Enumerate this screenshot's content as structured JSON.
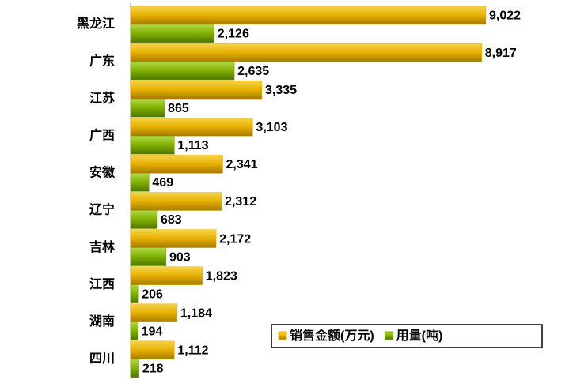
{
  "chart_data": {
    "type": "bar",
    "orientation": "horizontal",
    "categories": [
      "黑龙江",
      "广东",
      "江苏",
      "广西",
      "安徽",
      "辽宁",
      "吉林",
      "江西",
      "湖南",
      "四川"
    ],
    "series": [
      {
        "name": "销售金额(万元)",
        "color": "#e6b000",
        "values": [
          9022,
          8917,
          3335,
          3103,
          2341,
          2312,
          2172,
          1823,
          1184,
          1112
        ],
        "value_labels": [
          "9,022",
          "8,917",
          "3,335",
          "3,103",
          "2,341",
          "2,312",
          "2,172",
          "1,823",
          "1,184",
          "1,112"
        ]
      },
      {
        "name": "用量(吨)",
        "color": "#7fb000",
        "values": [
          2126,
          2635,
          865,
          1113,
          469,
          683,
          903,
          206,
          194,
          218
        ],
        "value_labels": [
          "2,126",
          "2,635",
          "865",
          "1,113",
          "469",
          "683",
          "903",
          "206",
          "194",
          "218"
        ]
      }
    ],
    "legend": "lower-right"
  }
}
